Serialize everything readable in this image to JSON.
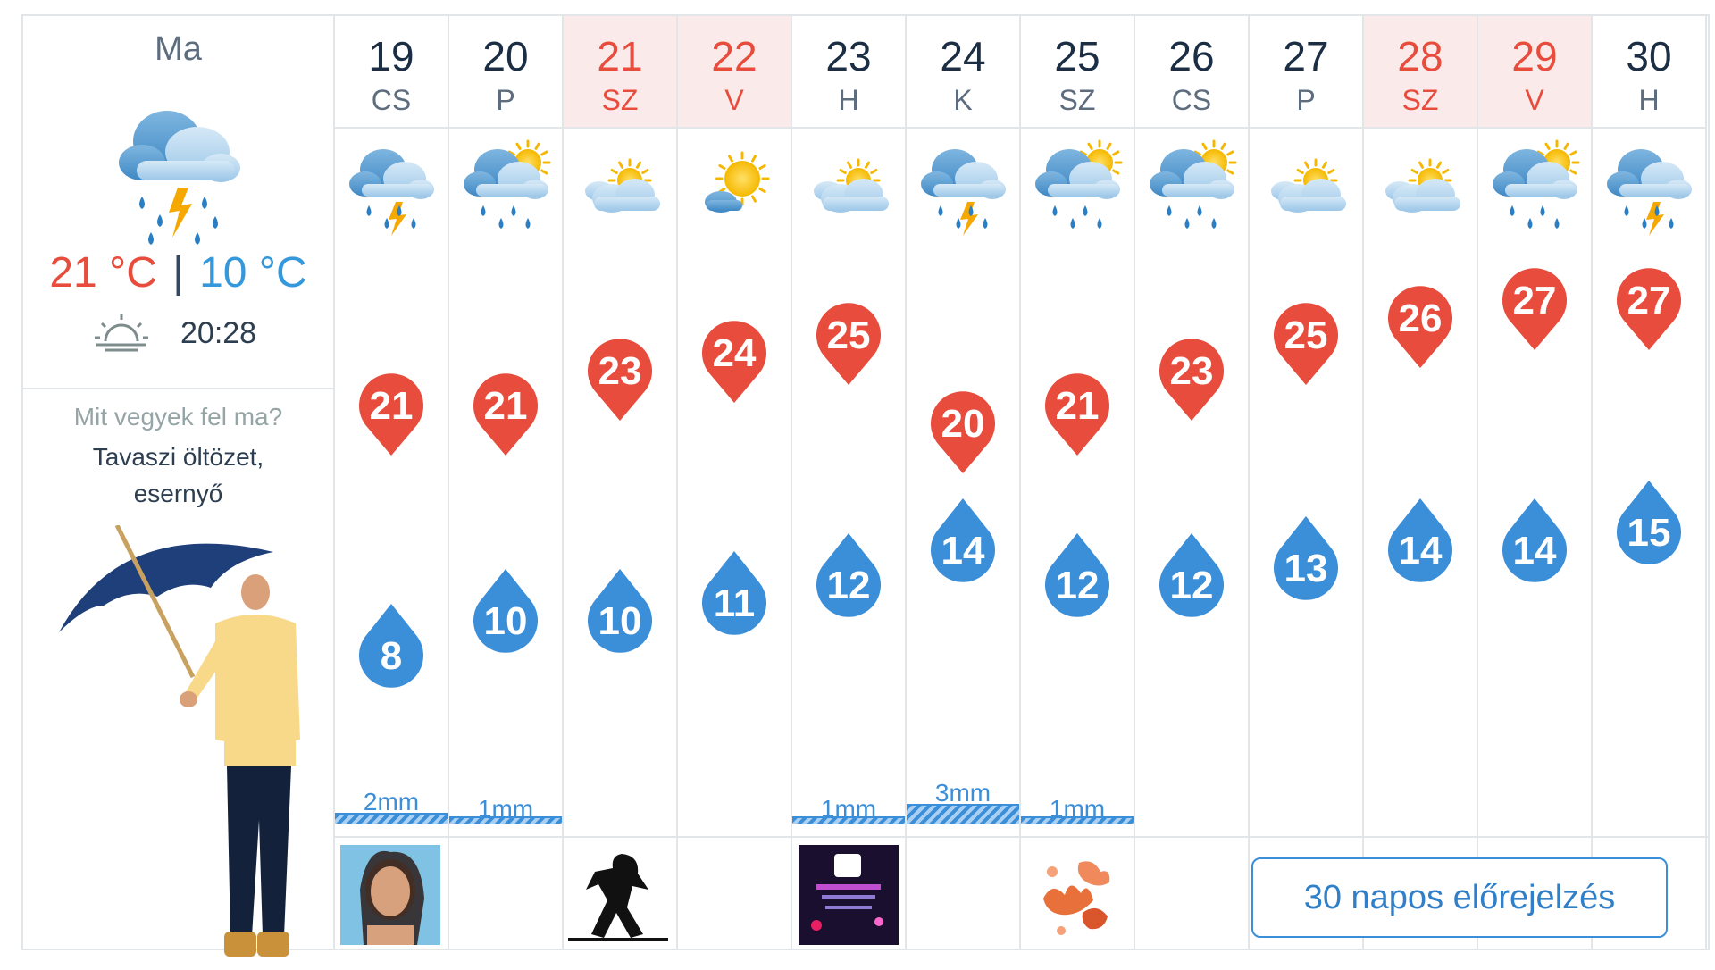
{
  "today": {
    "label": "Ma",
    "icon": "thunderstorm-rain-icon",
    "max_temp": "21 °C",
    "separator": "|",
    "min_temp": "10 °C",
    "sunset_icon": "sunset-icon",
    "sunset_time": "20:28",
    "wear_question": "Mit vegyek fel ma?",
    "wear_answer": "Tavaszi öltözet, esernyő"
  },
  "days": [
    {
      "num": "19",
      "name": "CS",
      "weekend": false,
      "icon": "thunderstorm-rain-icon",
      "max": "21",
      "min": "8",
      "rain": "2mm"
    },
    {
      "num": "20",
      "name": "P",
      "weekend": false,
      "icon": "sun-cloud-rain-icon",
      "max": "21",
      "min": "10",
      "rain": "1mm"
    },
    {
      "num": "21",
      "name": "SZ",
      "weekend": true,
      "icon": "partly-cloudy-icon",
      "max": "23",
      "min": "10",
      "rain": ""
    },
    {
      "num": "22",
      "name": "V",
      "weekend": true,
      "icon": "mostly-sunny-icon",
      "max": "24",
      "min": "11",
      "rain": ""
    },
    {
      "num": "23",
      "name": "H",
      "weekend": false,
      "icon": "partly-cloudy-icon",
      "max": "25",
      "min": "12",
      "rain": "1mm"
    },
    {
      "num": "24",
      "name": "K",
      "weekend": false,
      "icon": "thunderstorm-rain-icon",
      "max": "20",
      "min": "14",
      "rain": "3mm"
    },
    {
      "num": "25",
      "name": "SZ",
      "weekend": false,
      "icon": "sun-cloud-rain-icon",
      "max": "21",
      "min": "12",
      "rain": "1mm"
    },
    {
      "num": "26",
      "name": "CS",
      "weekend": false,
      "icon": "sun-cloud-rain-icon",
      "max": "23",
      "min": "12",
      "rain": ""
    },
    {
      "num": "27",
      "name": "P",
      "weekend": false,
      "icon": "partly-cloudy-icon",
      "max": "25",
      "min": "13",
      "rain": ""
    },
    {
      "num": "28",
      "name": "SZ",
      "weekend": true,
      "icon": "partly-cloudy-icon",
      "max": "26",
      "min": "14",
      "rain": ""
    },
    {
      "num": "29",
      "name": "V",
      "weekend": true,
      "icon": "sun-cloud-rain-icon",
      "max": "27",
      "min": "14",
      "rain": ""
    },
    {
      "num": "30",
      "name": "H",
      "weekend": false,
      "icon": "thunderstorm-rain-icon",
      "max": "27",
      "min": "15",
      "rain": ""
    }
  ],
  "thumbnails": [
    "woman-portrait-thumbnail",
    "silhouette-thumbnail",
    "event-poster-thumbnail",
    "autumn-leaves-thumbnail"
  ],
  "cta_label": "30 napos előrejelzés",
  "colors": {
    "max": "#e74c3c",
    "min": "#3b8ed8",
    "weekend_bg": "#fbeaea",
    "border": "#e3e6e9"
  }
}
